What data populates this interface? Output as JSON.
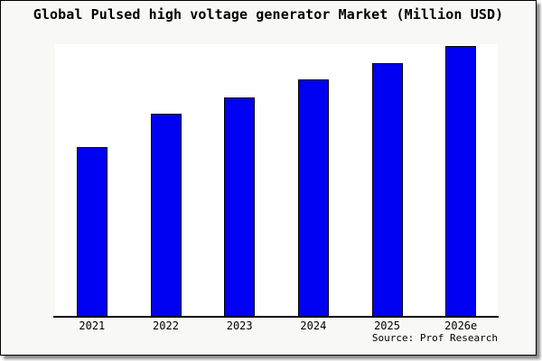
{
  "card": {
    "background": "#f8f8f6",
    "border_color": "#000000",
    "shadow_color": "#8a8a8a"
  },
  "chart_data": {
    "type": "bar",
    "title": "Global Pulsed high voltage generator Market (Million USD)",
    "categories": [
      "2021",
      "2022",
      "2023",
      "2024",
      "2025",
      "2026e"
    ],
    "values": [
      188,
      225,
      243,
      263,
      281,
      300
    ],
    "units": "relative bar height (y-axis unlabeled on chart)",
    "xlabel": "",
    "ylabel": "",
    "ylim": [
      0,
      302
    ],
    "grid": false,
    "legend": false,
    "bar_color": "#0000f2",
    "bar_border_color": "#000000",
    "plot_background": "#ffffff",
    "source": "Source: Prof Research"
  }
}
